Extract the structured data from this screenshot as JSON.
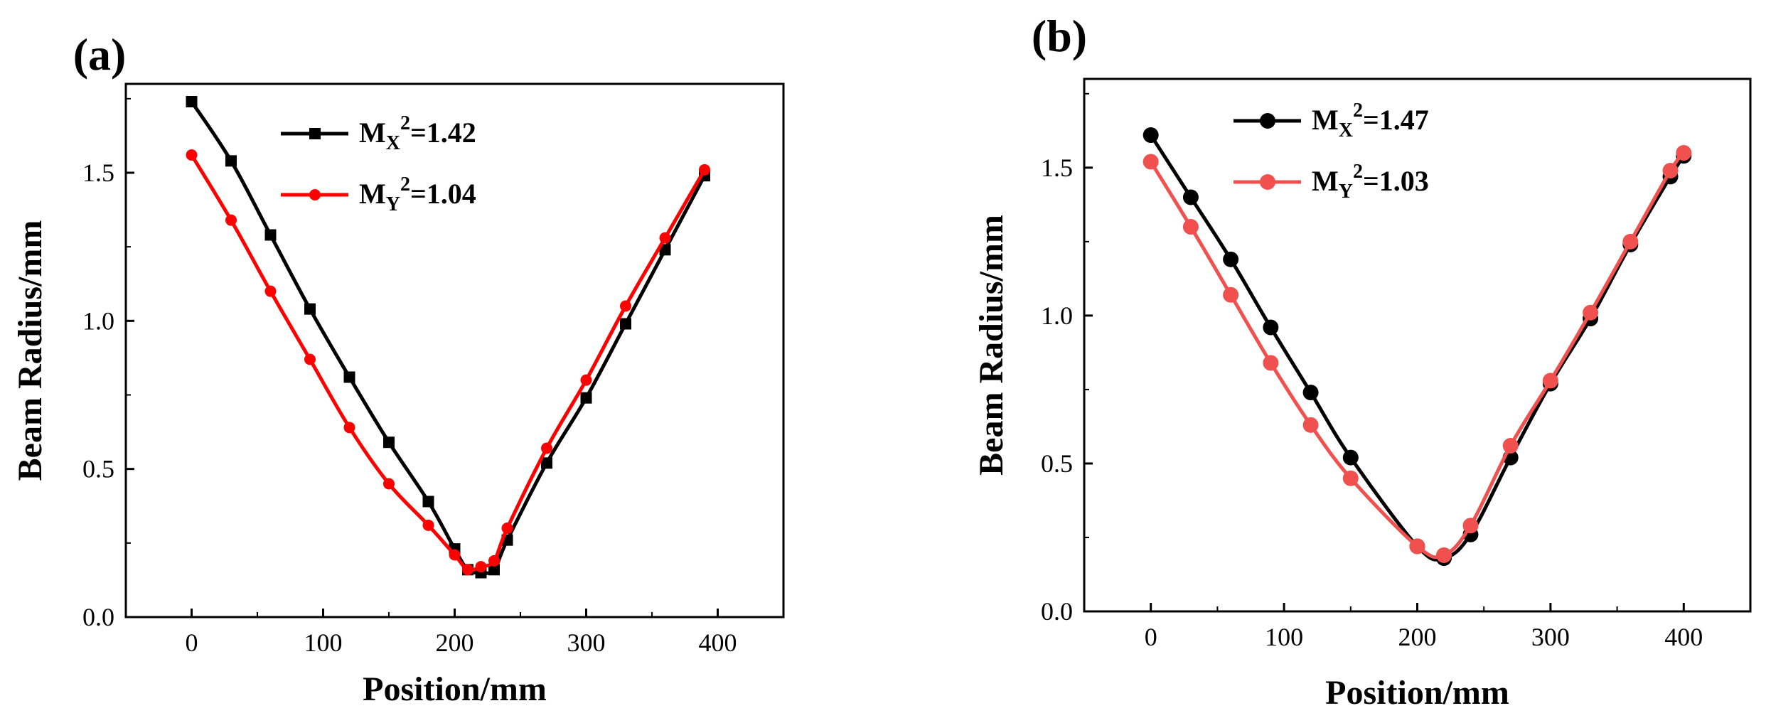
{
  "chart_data": [
    {
      "type": "line",
      "panel_label": "(a)",
      "xlabel": "Position/mm",
      "ylabel": "Beam Radius/mm",
      "xlim": [
        -50,
        450
      ],
      "ylim": [
        0.0,
        1.8
      ],
      "xticks": [
        0,
        100,
        200,
        300,
        400
      ],
      "xtick_labels": [
        "0",
        "100",
        "200",
        "300",
        "400"
      ],
      "yticks": [
        0.0,
        0.5,
        1.0,
        1.5
      ],
      "ytick_labels": [
        "0.0",
        "0.5",
        "1.0",
        "1.5"
      ],
      "grid": false,
      "legend_position": "top-center",
      "series": [
        {
          "name": "MX2=1.42",
          "legend": {
            "base": "M",
            "sub": "X",
            "sup": "2",
            "rest": "=1.42"
          },
          "color": "#000000",
          "marker": "square",
          "x": [
            0,
            30,
            60,
            90,
            120,
            150,
            180,
            200,
            210,
            220,
            230,
            240,
            270,
            300,
            330,
            360,
            390
          ],
          "y": [
            1.74,
            1.54,
            1.29,
            1.04,
            0.81,
            0.59,
            0.39,
            0.23,
            0.16,
            0.15,
            0.16,
            0.26,
            0.52,
            0.74,
            0.99,
            1.24,
            1.49
          ]
        },
        {
          "name": "MY2=1.04",
          "legend": {
            "base": "M",
            "sub": "Y",
            "sup": "2",
            "rest": "=1.04"
          },
          "color": "#ff0000",
          "marker": "circle",
          "x": [
            0,
            30,
            60,
            90,
            120,
            150,
            180,
            200,
            210,
            220,
            230,
            240,
            270,
            300,
            330,
            360,
            390
          ],
          "y": [
            1.56,
            1.34,
            1.1,
            0.87,
            0.64,
            0.45,
            0.31,
            0.21,
            0.16,
            0.17,
            0.19,
            0.3,
            0.57,
            0.8,
            1.05,
            1.28,
            1.51
          ]
        }
      ]
    },
    {
      "type": "line",
      "panel_label": "(b)",
      "xlabel": "Position/mm",
      "ylabel": "Beam Radius/mm",
      "xlim": [
        -50,
        450
      ],
      "ylim": [
        0.0,
        1.8
      ],
      "xticks": [
        0,
        100,
        200,
        300,
        400
      ],
      "xtick_labels": [
        "0",
        "100",
        "200",
        "300",
        "400"
      ],
      "yticks": [
        0.0,
        0.5,
        1.0,
        1.5
      ],
      "ytick_labels": [
        "0.0",
        "0.5",
        "1.0",
        "1.5"
      ],
      "grid": false,
      "legend_position": "top-center",
      "series": [
        {
          "name": "MX2=1.47",
          "legend": {
            "base": "M",
            "sub": "X",
            "sup": "2",
            "rest": "=1.47"
          },
          "color": "#000000",
          "marker": "circle",
          "x": [
            0,
            30,
            60,
            90,
            120,
            150,
            200,
            220,
            240,
            270,
            300,
            330,
            360,
            390,
            400
          ],
          "y": [
            1.61,
            1.4,
            1.19,
            0.96,
            0.74,
            0.52,
            0.22,
            0.18,
            0.26,
            0.52,
            0.77,
            0.99,
            1.24,
            1.47,
            1.54
          ]
        },
        {
          "name": "MY2=1.03",
          "legend": {
            "base": "M",
            "sub": "Y",
            "sup": "2",
            "rest": "=1.03"
          },
          "color": "#f0514f",
          "marker": "circle",
          "x": [
            0,
            30,
            60,
            90,
            120,
            150,
            200,
            220,
            240,
            270,
            300,
            330,
            360,
            390,
            400
          ],
          "y": [
            1.52,
            1.3,
            1.07,
            0.84,
            0.63,
            0.45,
            0.22,
            0.19,
            0.29,
            0.56,
            0.78,
            1.01,
            1.25,
            1.49,
            1.55
          ]
        }
      ]
    }
  ]
}
